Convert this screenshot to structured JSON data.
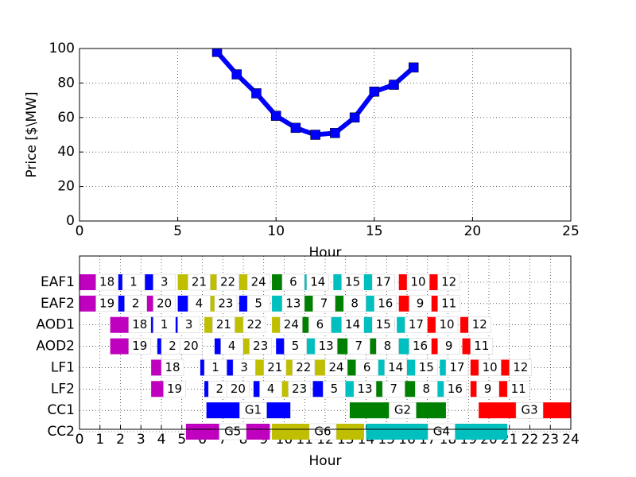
{
  "chart_data": [
    {
      "type": "line",
      "xlabel": "Hour",
      "ylabel": "Price [$\\MW]",
      "x": [
        7,
        8,
        9,
        10,
        11,
        12,
        13,
        14,
        15,
        16,
        17
      ],
      "series": [
        {
          "color": "#0000ff",
          "values": [
            98,
            85,
            74,
            61,
            54,
            50,
            51,
            60,
            75,
            79,
            89
          ]
        }
      ],
      "xlim": [
        0,
        25
      ],
      "xticks": [
        0,
        5,
        10,
        15,
        20,
        25
      ],
      "ylim": [
        0,
        100
      ],
      "yticks": [
        0,
        20,
        40,
        60,
        80,
        100
      ],
      "grid": true
    },
    {
      "type": "gantt",
      "xlabel": "Hour",
      "categories": [
        "EAF1",
        "EAF2",
        "AOD1",
        "AOD2",
        "LF1",
        "LF2",
        "CC1",
        "CC2"
      ],
      "xlim": [
        0,
        24
      ],
      "xticks": [
        0,
        1,
        2,
        3,
        4,
        5,
        6,
        7,
        8,
        9,
        10,
        11,
        12,
        13,
        14,
        15,
        16,
        17,
        18,
        19,
        20,
        21,
        22,
        23,
        24
      ],
      "grid": true,
      "series": [
        {
          "name": "G1",
          "color": "#0000ff",
          "tasks": [
            {
              "row": "EAF1",
              "label": "1",
              "start": 1.8,
              "end": 2.1
            },
            {
              "row": "EAF1",
              "label": "3",
              "start": 3.0,
              "end": 3.6
            },
            {
              "row": "EAF2",
              "label": "2",
              "start": 1.8,
              "end": 2.2
            },
            {
              "row": "EAF2",
              "label": "4",
              "start": 4.8,
              "end": 5.3
            },
            {
              "row": "EAF2",
              "label": "5",
              "start": 7.8,
              "end": 8.2
            },
            {
              "row": "AOD1",
              "label": "1",
              "start": 3.3,
              "end": 3.6
            },
            {
              "row": "AOD1",
              "label": "3",
              "start": 4.4,
              "end": 4.8
            },
            {
              "row": "AOD2",
              "label": "2",
              "start": 3.8,
              "end": 4.0
            },
            {
              "row": "AOD2",
              "label": "4",
              "start": 6.6,
              "end": 6.9
            },
            {
              "row": "AOD2",
              "label": "5",
              "start": 9.6,
              "end": 10.0
            },
            {
              "row": "LF1",
              "label": "1",
              "start": 5.9,
              "end": 6.1
            },
            {
              "row": "LF1",
              "label": "3",
              "start": 7.2,
              "end": 7.5
            },
            {
              "row": "LF2",
              "label": "2",
              "start": 6.1,
              "end": 6.3
            },
            {
              "row": "LF2",
              "label": "4",
              "start": 8.5,
              "end": 8.8
            },
            {
              "row": "LF2",
              "label": "5",
              "start": 11.4,
              "end": 11.9
            },
            {
              "row": "CC1",
              "start": 6.2,
              "end": 10.3
            }
          ]
        },
        {
          "name": "G2",
          "color": "#008000",
          "tasks": [
            {
              "row": "EAF1",
              "label": "6",
              "start": 9.4,
              "end": 9.9
            },
            {
              "row": "EAF2",
              "label": "7",
              "start": 10.9,
              "end": 11.4
            },
            {
              "row": "EAF2",
              "label": "8",
              "start": 12.4,
              "end": 12.9
            },
            {
              "row": "AOD1",
              "label": "6",
              "start": 10.5,
              "end": 11.2
            },
            {
              "row": "AOD2",
              "label": "7",
              "start": 12.6,
              "end": 13.1
            },
            {
              "row": "AOD2",
              "label": "8",
              "start": 14.1,
              "end": 14.5
            },
            {
              "row": "LF1",
              "label": "6",
              "start": 13.0,
              "end": 13.5
            },
            {
              "row": "LF2",
              "label": "7",
              "start": 14.4,
              "end": 14.8
            },
            {
              "row": "LF2",
              "label": "8",
              "start": 15.9,
              "end": 16.4
            },
            {
              "row": "CC1",
              "start": 13.2,
              "end": 17.9
            }
          ]
        },
        {
          "name": "G3",
          "color": "#ff0000",
          "tasks": [
            {
              "row": "EAF1",
              "label": "10",
              "start": 15.6,
              "end": 16.0
            },
            {
              "row": "EAF1",
              "label": "12",
              "start": 17.1,
              "end": 17.5
            },
            {
              "row": "EAF2",
              "label": "9",
              "start": 15.6,
              "end": 16.1
            },
            {
              "row": "EAF2",
              "label": "11",
              "start": 17.1,
              "end": 17.5
            },
            {
              "row": "AOD1",
              "label": "10",
              "start": 17.0,
              "end": 17.4
            },
            {
              "row": "AOD1",
              "label": "12",
              "start": 18.6,
              "end": 19.0
            },
            {
              "row": "AOD2",
              "label": "9",
              "start": 17.1,
              "end": 17.5
            },
            {
              "row": "AOD2",
              "label": "11",
              "start": 18.7,
              "end": 19.1
            },
            {
              "row": "LF1",
              "label": "10",
              "start": 19.1,
              "end": 19.5
            },
            {
              "row": "LF1",
              "label": "12",
              "start": 20.6,
              "end": 21.0
            },
            {
              "row": "LF2",
              "label": "9",
              "start": 19.1,
              "end": 19.4
            },
            {
              "row": "LF2",
              "label": "11",
              "start": 20.5,
              "end": 20.9
            },
            {
              "row": "CC1",
              "start": 19.5,
              "end": 24
            }
          ]
        },
        {
          "name": "G4",
          "color": "#00bfbf",
          "tasks": [
            {
              "row": "EAF1",
              "label": "14",
              "start": 10.5,
              "end": 11.1
            },
            {
              "row": "EAF1",
              "label": "15",
              "start": 12.4,
              "end": 12.8
            },
            {
              "row": "EAF1",
              "label": "17",
              "start": 13.9,
              "end": 14.3
            },
            {
              "row": "EAF2",
              "label": "13",
              "start": 9.4,
              "end": 9.9
            },
            {
              "row": "EAF2",
              "label": "16",
              "start": 13.9,
              "end": 14.4
            },
            {
              "row": "AOD1",
              "label": "14",
              "start": 12.3,
              "end": 12.8
            },
            {
              "row": "AOD1",
              "label": "15",
              "start": 13.9,
              "end": 14.3
            },
            {
              "row": "AOD1",
              "label": "17",
              "start": 15.5,
              "end": 15.9
            },
            {
              "row": "AOD2",
              "label": "13",
              "start": 11.1,
              "end": 11.5
            },
            {
              "row": "AOD2",
              "label": "16",
              "start": 15.6,
              "end": 16.1
            },
            {
              "row": "LF1",
              "label": "14",
              "start": 14.5,
              "end": 14.9
            },
            {
              "row": "LF1",
              "label": "15",
              "start": 16.0,
              "end": 16.4
            },
            {
              "row": "LF1",
              "label": "17",
              "start": 17.6,
              "end": 17.9
            },
            {
              "row": "LF2",
              "label": "13",
              "start": 12.9,
              "end": 13.4
            },
            {
              "row": "LF2",
              "label": "16",
              "start": 17.4,
              "end": 17.8
            },
            {
              "row": "CC2",
              "start": 14.0,
              "end": 20.9
            }
          ]
        },
        {
          "name": "G5",
          "color": "#bf00bf",
          "tasks": [
            {
              "row": "EAF1",
              "label": "18",
              "start": 0,
              "end": 0.8
            },
            {
              "row": "EAF2",
              "label": "19",
              "start": 0,
              "end": 0.8
            },
            {
              "row": "EAF2",
              "label": "20",
              "start": 3.0,
              "end": 3.6
            },
            {
              "row": "AOD1",
              "label": "18",
              "start": 1.5,
              "end": 2.4
            },
            {
              "row": "AOD2",
              "label": "19",
              "start": 1.5,
              "end": 2.4
            },
            {
              "row": "AOD2",
              "label": "20",
              "start": 4.4,
              "end": 4.9
            },
            {
              "row": "LF1",
              "label": "18",
              "start": 3.5,
              "end": 4.0
            },
            {
              "row": "LF2",
              "label": "19",
              "start": 3.5,
              "end": 4.1
            },
            {
              "row": "LF2",
              "label": "20",
              "start": 6.9,
              "end": 7.2
            },
            {
              "row": "CC2",
              "start": 5.2,
              "end": 9.3
            }
          ]
        },
        {
          "name": "G6",
          "color": "#bfbf00",
          "tasks": [
            {
              "row": "EAF1",
              "label": "21",
              "start": 4.8,
              "end": 5.3
            },
            {
              "row": "EAF1",
              "label": "22",
              "start": 6.3,
              "end": 6.7
            },
            {
              "row": "EAF1",
              "label": "24",
              "start": 7.8,
              "end": 8.2
            },
            {
              "row": "EAF2",
              "label": "23",
              "start": 6.0,
              "end": 6.6
            },
            {
              "row": "AOD1",
              "label": "21",
              "start": 6.1,
              "end": 6.5
            },
            {
              "row": "AOD1",
              "label": "22",
              "start": 7.5,
              "end": 8.0
            },
            {
              "row": "AOD1",
              "label": "24",
              "start": 9.4,
              "end": 9.8
            },
            {
              "row": "AOD2",
              "label": "23",
              "start": 8.0,
              "end": 8.3
            },
            {
              "row": "LF1",
              "label": "21",
              "start": 8.6,
              "end": 9.0
            },
            {
              "row": "LF1",
              "label": "22",
              "start": 10.1,
              "end": 10.4
            },
            {
              "row": "LF1",
              "label": "24",
              "start": 11.5,
              "end": 12.0
            },
            {
              "row": "LF2",
              "label": "23",
              "start": 9.8,
              "end": 10.2
            },
            {
              "row": "CC2",
              "start": 9.4,
              "end": 13.9
            }
          ]
        }
      ]
    }
  ]
}
